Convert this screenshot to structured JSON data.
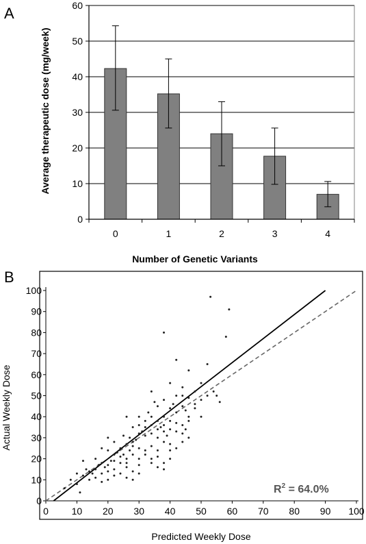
{
  "chart_data": [
    {
      "panel": "A",
      "type": "bar",
      "categories": [
        "0",
        "1",
        "2",
        "3",
        "4"
      ],
      "values": [
        42.3,
        35.2,
        24.0,
        17.7,
        7.0
      ],
      "error_upper": [
        54.3,
        45.0,
        33.0,
        25.6,
        10.6
      ],
      "error_lower": [
        30.6,
        25.6,
        15.0,
        9.8,
        3.5
      ],
      "xlabel": "Number of Genetic Variants",
      "ylabel": "Average therapeutic dose (mg/week)",
      "ylim": [
        0,
        60
      ],
      "yticks": [
        "0",
        "10",
        "20",
        "30",
        "40",
        "50",
        "60"
      ],
      "grid": "horizontal",
      "bar_color": "#808080"
    },
    {
      "panel": "B",
      "type": "scatter",
      "xlabel": "Predicted Weekly Dose",
      "ylabel": "Actual Weekly Dose",
      "xlim": [
        0,
        100
      ],
      "ylim": [
        0,
        100
      ],
      "xticks": [
        "0",
        "10",
        "20",
        "30",
        "40",
        "50",
        "60",
        "70",
        "80",
        "90",
        "100"
      ],
      "yticks": [
        "0",
        "10",
        "20",
        "30",
        "40",
        "50",
        "60",
        "70",
        "80",
        "90",
        "100"
      ],
      "annotation": "R",
      "annotation_sup": "2",
      "annotation_rest": " = 64.0%",
      "regression_line": {
        "x": [
          2.5,
          90
        ],
        "y": [
          0,
          100
        ],
        "style": "solid"
      },
      "identity_line": {
        "x": [
          0,
          100
        ],
        "y": [
          0,
          100
        ],
        "style": "dashed"
      },
      "points": [
        [
          53,
          97
        ],
        [
          59,
          91
        ],
        [
          38,
          80
        ],
        [
          58,
          78
        ],
        [
          42,
          67
        ],
        [
          52,
          65
        ],
        [
          46,
          62
        ],
        [
          34,
          52
        ],
        [
          40,
          56
        ],
        [
          48,
          52
        ],
        [
          50,
          56
        ],
        [
          44,
          54
        ],
        [
          42,
          50
        ],
        [
          38,
          48
        ],
        [
          46,
          49
        ],
        [
          52,
          50
        ],
        [
          55,
          50
        ],
        [
          36,
          45
        ],
        [
          40,
          44
        ],
        [
          44,
          45
        ],
        [
          48,
          46
        ],
        [
          30,
          40
        ],
        [
          32,
          38
        ],
        [
          34,
          40
        ],
        [
          36,
          38
        ],
        [
          38,
          40
        ],
        [
          42,
          42
        ],
        [
          45,
          43
        ],
        [
          28,
          35
        ],
        [
          30,
          36
        ],
        [
          32,
          35
        ],
        [
          34,
          36
        ],
        [
          36,
          34
        ],
        [
          38,
          36
        ],
        [
          40,
          38
        ],
        [
          42,
          37
        ],
        [
          44,
          36
        ],
        [
          46,
          38
        ],
        [
          50,
          40
        ],
        [
          26,
          40
        ],
        [
          25,
          31
        ],
        [
          27,
          30
        ],
        [
          28,
          28
        ],
        [
          30,
          32
        ],
        [
          32,
          31
        ],
        [
          34,
          32
        ],
        [
          36,
          30
        ],
        [
          38,
          33
        ],
        [
          40,
          34
        ],
        [
          42,
          33
        ],
        [
          44,
          32
        ],
        [
          46,
          30
        ],
        [
          20,
          30
        ],
        [
          22,
          28
        ],
        [
          24,
          25
        ],
        [
          26,
          27
        ],
        [
          28,
          26
        ],
        [
          30,
          25
        ],
        [
          32,
          24
        ],
        [
          34,
          26
        ],
        [
          36,
          24
        ],
        [
          38,
          28
        ],
        [
          40,
          27
        ],
        [
          45,
          34
        ],
        [
          18,
          25
        ],
        [
          20,
          24
        ],
        [
          22,
          22
        ],
        [
          24,
          21
        ],
        [
          26,
          20
        ],
        [
          28,
          22
        ],
        [
          30,
          20
        ],
        [
          32,
          22
        ],
        [
          34,
          20
        ],
        [
          36,
          21
        ],
        [
          38,
          18
        ],
        [
          40,
          20
        ],
        [
          16,
          20
        ],
        [
          18,
          18
        ],
        [
          20,
          17
        ],
        [
          22,
          19
        ],
        [
          24,
          18
        ],
        [
          26,
          16
        ],
        [
          28,
          14
        ],
        [
          30,
          17
        ],
        [
          34,
          18
        ],
        [
          38,
          15
        ],
        [
          12,
          19
        ],
        [
          14,
          14
        ],
        [
          16,
          15
        ],
        [
          18,
          13
        ],
        [
          20,
          14
        ],
        [
          22,
          12
        ],
        [
          24,
          13
        ],
        [
          26,
          11
        ],
        [
          30,
          13
        ],
        [
          10,
          13
        ],
        [
          12,
          12
        ],
        [
          14,
          10
        ],
        [
          16,
          11
        ],
        [
          18,
          9
        ],
        [
          20,
          10
        ],
        [
          22,
          15
        ],
        [
          26,
          18
        ],
        [
          28,
          10
        ],
        [
          8,
          10
        ],
        [
          10,
          8
        ],
        [
          11,
          4
        ],
        [
          6,
          6
        ],
        [
          36,
          16
        ],
        [
          40,
          24
        ],
        [
          42,
          25
        ],
        [
          44,
          28
        ],
        [
          46,
          40
        ],
        [
          48,
          44
        ],
        [
          50,
          48
        ],
        [
          54,
          52
        ],
        [
          56,
          47
        ],
        [
          35,
          47
        ],
        [
          33,
          42
        ],
        [
          31,
          33
        ],
        [
          29,
          29
        ],
        [
          27,
          24
        ],
        [
          25,
          22
        ],
        [
          23,
          23
        ],
        [
          21,
          19
        ],
        [
          19,
          16
        ],
        [
          17,
          17
        ],
        [
          15,
          13
        ],
        [
          13,
          15
        ],
        [
          44,
          50
        ],
        [
          41,
          46
        ],
        [
          37,
          35
        ],
        [
          39,
          31
        ]
      ]
    }
  ]
}
